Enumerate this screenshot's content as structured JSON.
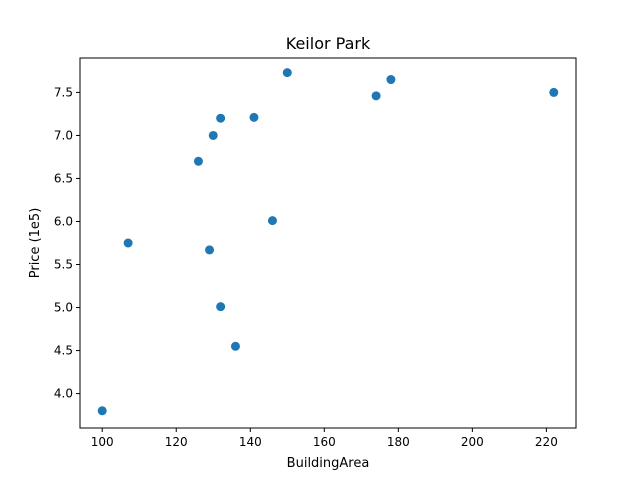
{
  "chart_data": {
    "type": "scatter",
    "title": "Keilor Park",
    "xlabel": "BuildingArea",
    "ylabel": "Price (1e5)",
    "xlim": [
      94,
      228
    ],
    "ylim": [
      3.6,
      7.9
    ],
    "xticks": [
      100,
      120,
      140,
      160,
      180,
      200,
      220
    ],
    "xtick_labels": [
      "100",
      "120",
      "140",
      "160",
      "180",
      "200",
      "220"
    ],
    "yticks": [
      4.0,
      4.5,
      5.0,
      5.5,
      6.0,
      6.5,
      7.0,
      7.5
    ],
    "ytick_labels": [
      "4.0",
      "4.5",
      "5.0",
      "5.5",
      "6.0",
      "6.5",
      "7.0",
      "7.5"
    ],
    "grid": false,
    "color": "#1f77b4",
    "x": [
      100,
      107,
      126,
      129,
      130,
      132,
      132,
      136,
      141,
      146,
      150,
      174,
      178,
      222
    ],
    "y": [
      3.8,
      5.75,
      6.7,
      5.67,
      7.0,
      7.2,
      5.01,
      4.55,
      7.21,
      6.01,
      7.73,
      7.46,
      7.65,
      7.5
    ]
  }
}
